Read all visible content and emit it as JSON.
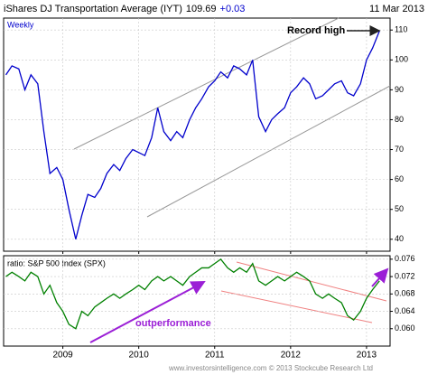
{
  "chart_data": [
    {
      "type": "line",
      "title": "iShares DJ Transportation Average (IYT)",
      "last": "109.69",
      "change": "+0.03",
      "date": "11 Mar 2013",
      "period": "Weekly",
      "annotation": "Record high",
      "x": [
        2008.25,
        2008.33,
        2008.42,
        2008.5,
        2008.58,
        2008.67,
        2008.75,
        2008.83,
        2008.92,
        2009.0,
        2009.08,
        2009.17,
        2009.25,
        2009.33,
        2009.42,
        2009.5,
        2009.58,
        2009.67,
        2009.75,
        2009.83,
        2009.92,
        2010.0,
        2010.08,
        2010.17,
        2010.25,
        2010.33,
        2010.42,
        2010.5,
        2010.58,
        2010.67,
        2010.75,
        2010.83,
        2010.92,
        2011.0,
        2011.08,
        2011.17,
        2011.25,
        2011.33,
        2011.42,
        2011.5,
        2011.58,
        2011.67,
        2011.75,
        2011.83,
        2011.92,
        2012.0,
        2012.08,
        2012.17,
        2012.25,
        2012.33,
        2012.42,
        2012.5,
        2012.58,
        2012.67,
        2012.75,
        2012.83,
        2012.92,
        2013.0,
        2013.08,
        2013.17
      ],
      "values": [
        95,
        98,
        97,
        90,
        95,
        92,
        76,
        62,
        64,
        60,
        50,
        40,
        48,
        55,
        54,
        57,
        62,
        65,
        63,
        67,
        70,
        69,
        68,
        74,
        84,
        76,
        73,
        76,
        74,
        80,
        84,
        87,
        91,
        93,
        96,
        94,
        98,
        97,
        95,
        100,
        81,
        76,
        80,
        82,
        84,
        89,
        91,
        94,
        92,
        87,
        88,
        90,
        92,
        93,
        89,
        88,
        92,
        100,
        104,
        109.69
      ],
      "color": "#0000cc",
      "xlim": [
        2008.22,
        2013.31
      ],
      "xticks": [
        2009,
        2010,
        2011,
        2012,
        2013
      ],
      "ylim": [
        36,
        114
      ],
      "yticks": [
        40,
        50,
        60,
        70,
        80,
        90,
        100,
        110
      ],
      "grid": true
    },
    {
      "type": "line",
      "title": "ratio: S&P 500 Index (SPX)",
      "annotation": "outperformance",
      "x": [
        2008.25,
        2008.33,
        2008.42,
        2008.5,
        2008.58,
        2008.67,
        2008.75,
        2008.83,
        2008.92,
        2009.0,
        2009.08,
        2009.17,
        2009.25,
        2009.33,
        2009.42,
        2009.5,
        2009.58,
        2009.67,
        2009.75,
        2009.83,
        2009.92,
        2010.0,
        2010.08,
        2010.17,
        2010.25,
        2010.33,
        2010.42,
        2010.5,
        2010.58,
        2010.67,
        2010.75,
        2010.83,
        2010.92,
        2011.0,
        2011.08,
        2011.17,
        2011.25,
        2011.33,
        2011.42,
        2011.5,
        2011.58,
        2011.67,
        2011.75,
        2011.83,
        2011.92,
        2012.0,
        2012.08,
        2012.17,
        2012.25,
        2012.33,
        2012.42,
        2012.5,
        2012.58,
        2012.67,
        2012.75,
        2012.83,
        2012.92,
        2013.0,
        2013.08,
        2013.17
      ],
      "values": [
        0.072,
        0.073,
        0.072,
        0.071,
        0.073,
        0.072,
        0.068,
        0.07,
        0.066,
        0.064,
        0.061,
        0.06,
        0.064,
        0.063,
        0.065,
        0.066,
        0.067,
        0.068,
        0.067,
        0.068,
        0.069,
        0.07,
        0.069,
        0.071,
        0.072,
        0.071,
        0.072,
        0.071,
        0.07,
        0.072,
        0.073,
        0.074,
        0.074,
        0.075,
        0.076,
        0.074,
        0.073,
        0.074,
        0.073,
        0.075,
        0.071,
        0.07,
        0.071,
        0.072,
        0.071,
        0.072,
        0.073,
        0.072,
        0.071,
        0.068,
        0.067,
        0.068,
        0.067,
        0.066,
        0.063,
        0.062,
        0.064,
        0.067,
        0.069,
        0.071
      ],
      "color": "#008000",
      "xlim": [
        2008.22,
        2013.31
      ],
      "xticks": [
        2009,
        2010,
        2011,
        2012,
        2013
      ],
      "ylim": [
        0.056,
        0.0768
      ],
      "yticks": [
        {
          "value": 0.06,
          "label": "0.060"
        },
        {
          "value": 0.064,
          "label": "0.064"
        },
        {
          "value": 0.068,
          "label": "0.068"
        },
        {
          "value": 0.072,
          "label": "0.072"
        },
        {
          "value": 0.076,
          "label": "0.076"
        }
      ],
      "grid": true
    }
  ],
  "footer": "www.investorsintelligence.com © 2013 Stockcube Research Ltd"
}
